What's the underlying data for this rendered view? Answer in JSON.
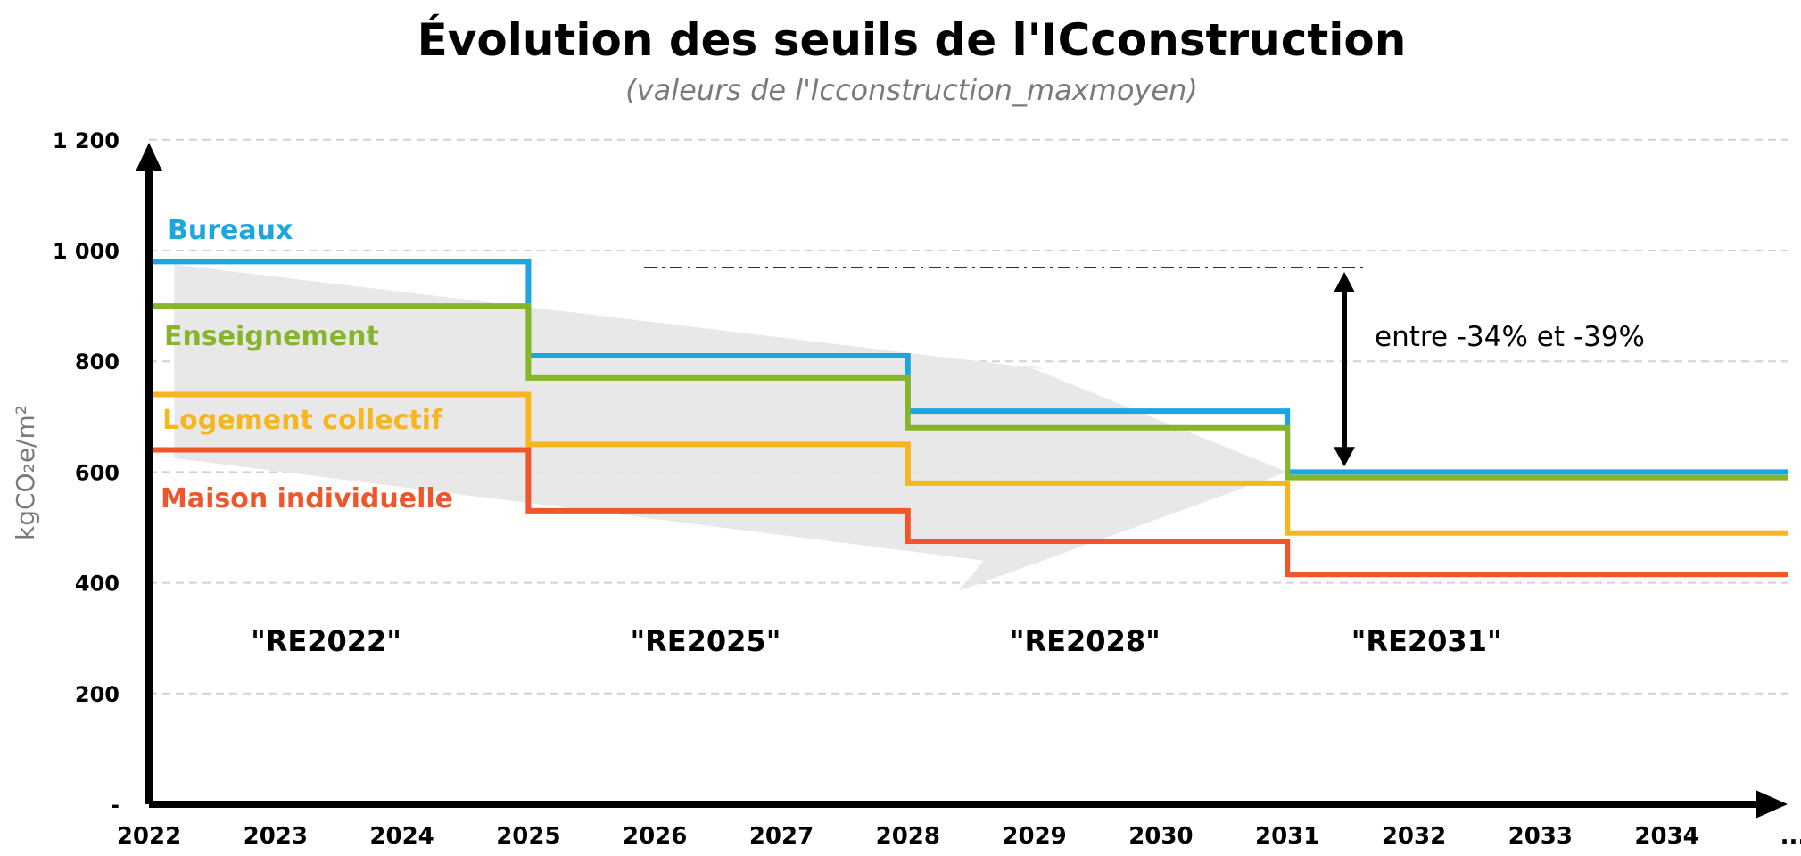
{
  "chart_data": {
    "type": "line",
    "title": "Évolution des seuils de l'ICconstruction",
    "subtitle": "(valeurs de l'Icconstruction_maxmoyen)",
    "ylabel": "kgCO₂e/m²",
    "xlabel": "",
    "ylim": [
      0,
      1200
    ],
    "y_ticks": [
      {
        "value": 0,
        "label": "-"
      },
      {
        "value": 200,
        "label": "200"
      },
      {
        "value": 400,
        "label": "400"
      },
      {
        "value": 600,
        "label": "600"
      },
      {
        "value": 800,
        "label": "800"
      },
      {
        "value": 1000,
        "label": "1 000"
      },
      {
        "value": 1200,
        "label": "1 200"
      }
    ],
    "x_ticks": [
      "2022",
      "2023",
      "2024",
      "2025",
      "2026",
      "2027",
      "2028",
      "2029",
      "2030",
      "2031",
      "2032",
      "2033",
      "2034",
      "..."
    ],
    "grid": true,
    "step_years": [
      2022,
      2025,
      2028,
      2031
    ],
    "series": [
      {
        "name": "Bureaux",
        "color": "#1ba6e1",
        "values": [
          980,
          810,
          710,
          600
        ]
      },
      {
        "name": "Enseignement",
        "color": "#86b52c",
        "values": [
          900,
          770,
          680,
          590
        ]
      },
      {
        "name": "Logement collectif",
        "color": "#f7b51f",
        "values": [
          740,
          650,
          580,
          490
        ]
      },
      {
        "name": "Maison individuelle",
        "color": "#f0562b",
        "values": [
          640,
          530,
          475,
          415
        ]
      }
    ],
    "phases": [
      {
        "label": "\"RE2022\"",
        "x": 2023.4
      },
      {
        "label": "\"RE2025\"",
        "x": 2026.4
      },
      {
        "label": "\"RE2028\"",
        "x": 2029.4
      },
      {
        "label": "\"RE2031\"",
        "x": 2032.1
      }
    ],
    "annotation": {
      "text": "entre -34% et -39%",
      "from_value": 975,
      "to_value": 610,
      "x": 2031.45
    }
  }
}
